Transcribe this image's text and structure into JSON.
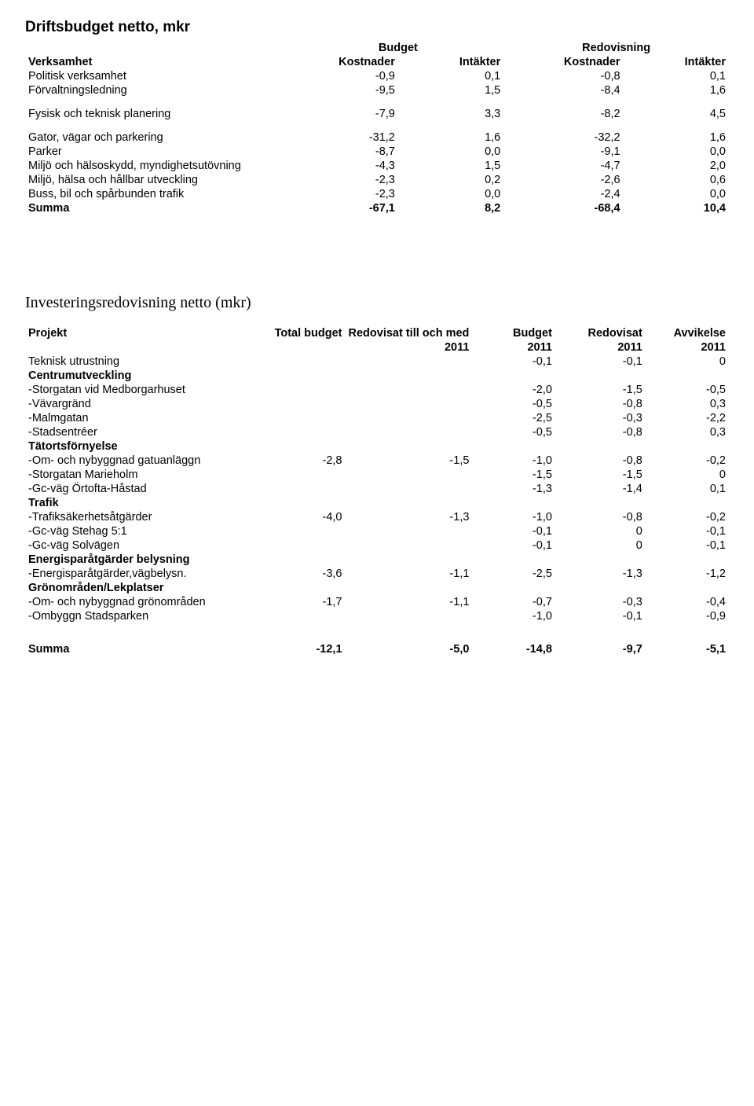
{
  "table1": {
    "title": "Driftsbudget netto, mkr",
    "header_top": {
      "budget": "Budget",
      "redovisning": "Redovisning"
    },
    "header": {
      "c0": "Verksamhet",
      "c1": "Kostnader",
      "c2": "Intäkter",
      "c3": "Kostnader",
      "c4": "Intäkter"
    },
    "rows": [
      {
        "label": "Politisk verksamhet",
        "v": [
          "-0,9",
          "0,1",
          "-0,8",
          "0,1"
        ]
      },
      {
        "label": "Förvaltningsledning",
        "v": [
          "-9,5",
          "1,5",
          "-8,4",
          "1,6"
        ]
      },
      {
        "label": "Fysisk och teknisk planering",
        "v": [
          "-7,9",
          "3,3",
          "-8,2",
          "4,5"
        ],
        "gap_before": true
      },
      {
        "label": "Gator, vägar och parkering",
        "v": [
          "-31,2",
          "1,6",
          "-32,2",
          "1,6"
        ],
        "gap_before": true
      },
      {
        "label": "Parker",
        "v": [
          "-8,7",
          "0,0",
          "-9,1",
          "0,0"
        ]
      },
      {
        "label": "Miljö och hälsoskydd, myndighetsutövning",
        "v": [
          "-4,3",
          "1,5",
          "-4,7",
          "2,0"
        ]
      },
      {
        "label": "Miljö, hälsa och hållbar utveckling",
        "v": [
          "-2,3",
          "0,2",
          "-2,6",
          "0,6"
        ]
      },
      {
        "label": "Buss, bil och spårbunden trafik",
        "v": [
          "-2,3",
          "0,0",
          "-2,4",
          "0,0"
        ]
      }
    ],
    "sum": {
      "label": "Summa",
      "v": [
        "-67,1",
        "8,2",
        "-68,4",
        "10,4"
      ]
    }
  },
  "table2": {
    "title": "Investeringsredovisning netto (mkr)",
    "header1": {
      "c0": "Projekt",
      "c1": "Total budget",
      "c2": "Redovisat till och med",
      "c3": "Budget",
      "c4": "Redovisat",
      "c5": "Avvikelse"
    },
    "header2": {
      "c2": "2011",
      "c3": "2011",
      "c4": "2011",
      "c5": "2011"
    },
    "rows": [
      {
        "label": "Teknisk utrustning",
        "v": [
          "",
          "",
          "-0,1",
          "-0,1",
          "0"
        ]
      },
      {
        "label": "Centrumutveckling",
        "bold": true,
        "v": [
          "",
          "",
          "",
          "",
          ""
        ]
      },
      {
        "label": "-Storgatan vid Medborgarhuset",
        "v": [
          "",
          "",
          "-2,0",
          "-1,5",
          "-0,5"
        ]
      },
      {
        "label": "-Vävargränd",
        "v": [
          "",
          "",
          "-0,5",
          "-0,8",
          "0,3"
        ]
      },
      {
        "label": "-Malmgatan",
        "v": [
          "",
          "",
          "-2,5",
          "-0,3",
          "-2,2"
        ]
      },
      {
        "label": "-Stadsentréer",
        "v": [
          "",
          "",
          "-0,5",
          "-0,8",
          "0,3"
        ]
      },
      {
        "label": "Tätortsförnyelse",
        "bold": true,
        "v": [
          "",
          "",
          "",
          "",
          ""
        ]
      },
      {
        "label": "-Om- och nybyggnad gatuanläggn",
        "v": [
          "-2,8",
          "-1,5",
          "-1,0",
          "-0,8",
          "-0,2"
        ]
      },
      {
        "label": "-Storgatan Marieholm",
        "v": [
          "",
          "",
          "-1,5",
          "-1,5",
          "0"
        ]
      },
      {
        "label": "-Gc-väg Örtofta-Håstad",
        "v": [
          "",
          "",
          "-1,3",
          "-1,4",
          "0,1"
        ]
      },
      {
        "label": "Trafik",
        "bold": true,
        "v": [
          "",
          "",
          "",
          "",
          ""
        ]
      },
      {
        "label": "-Trafiksäkerhetsåtgärder",
        "v": [
          "-4,0",
          "-1,3",
          "-1,0",
          "-0,8",
          "-0,2"
        ]
      },
      {
        "label": "-Gc-väg Stehag 5:1",
        "v": [
          "",
          "",
          "-0,1",
          "0",
          "-0,1"
        ]
      },
      {
        "label": "-Gc-väg Solvägen",
        "v": [
          "",
          "",
          "-0,1",
          "0",
          "-0,1"
        ]
      },
      {
        "label": "Energisparåtgärder belysning",
        "bold": true,
        "v": [
          "",
          "",
          "",
          "",
          ""
        ]
      },
      {
        "label": "-Energisparåtgärder,vägbelysn.",
        "v": [
          "-3,6",
          "-1,1",
          "-2,5",
          "-1,3",
          "-1,2"
        ]
      },
      {
        "label": "Grönområden/Lekplatser",
        "bold": true,
        "v": [
          "",
          "",
          "",
          "",
          ""
        ]
      },
      {
        "label": "-Om- och nybyggnad grönområden",
        "v": [
          "-1,7",
          "-1,1",
          "-0,7",
          "-0,3",
          "-0,4"
        ]
      },
      {
        "label": "-Ombyggn Stadsparken",
        "v": [
          "",
          "",
          "-1,0",
          "-0,1",
          "-0,9"
        ]
      }
    ],
    "sum": {
      "label": "Summa",
      "v": [
        "-12,1",
        "-5,0",
        "-14,8",
        "-9,7",
        "-5,1"
      ]
    }
  }
}
